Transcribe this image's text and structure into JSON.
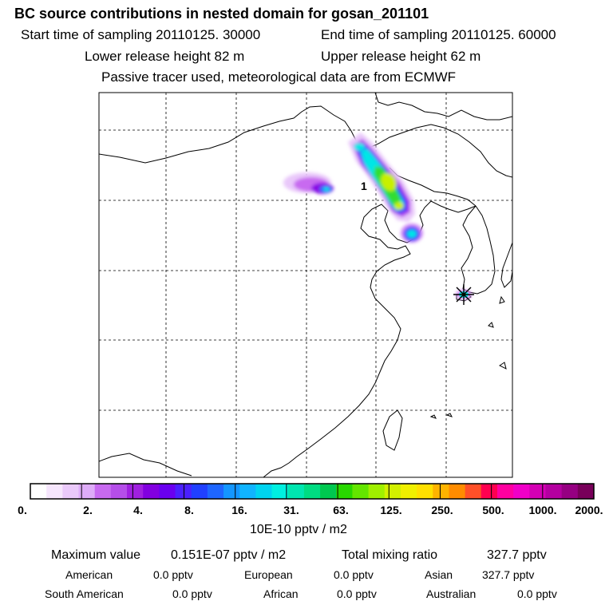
{
  "header": {
    "title": "BC  source contributions in nested domain for gosan_201101",
    "start_time": "Start time of sampling 20110125. 30000",
    "end_time": "End time of sampling 20110125. 60000",
    "lower_height": "Lower release height   82 m",
    "upper_height": "Upper release height   62 m",
    "tracer_note": "Passive tracer used, meteorological data are from ECMWF"
  },
  "map": {
    "release_label": "1",
    "plume_colors": {
      "outer": "#b000e8",
      "mid": "#1e66ff",
      "inner": "#00e6e6",
      "core": "#33dd33",
      "peak": "#c8f000"
    },
    "coastline_color": "#000000",
    "grid_style": "dashed"
  },
  "colorbar": {
    "colors": [
      "#ffffff",
      "#f6e6fd",
      "#eac9fa",
      "#deacf8",
      "#c86af0",
      "#b54ee9",
      "#a020e0",
      "#8200e0",
      "#6a00f0",
      "#4a20ff",
      "#2040ff",
      "#1e66ff",
      "#1496ff",
      "#10b4ff",
      "#00d4f0",
      "#00f0e0",
      "#00e6b0",
      "#00dc82",
      "#00c850",
      "#28d800",
      "#64e600",
      "#a0f000",
      "#d2f000",
      "#f0f000",
      "#ffe000",
      "#ffb400",
      "#ff8c00",
      "#ff5028",
      "#ff0050",
      "#ff00a0",
      "#f000c8",
      "#d400b4",
      "#b400a0",
      "#960082",
      "#78005a"
    ],
    "tick_labels": [
      "0.",
      "2.",
      "4.",
      "8.",
      "16.",
      "31.",
      "63.",
      "125.",
      "250.",
      "500.",
      "1000.",
      "2000."
    ],
    "units": "10E-10 pptv / m2"
  },
  "stats": {
    "max_label": "Maximum value",
    "max_value": "0.151E-07 pptv / m2",
    "total_label": "Total mixing ratio",
    "total_value": "327.7 pptv",
    "regions": [
      {
        "name": "American",
        "value": "0.0 pptv"
      },
      {
        "name": "European",
        "value": "0.0 pptv"
      },
      {
        "name": "Asian",
        "value": "327.7 pptv"
      },
      {
        "name": "South American",
        "value": "0.0 pptv"
      },
      {
        "name": "African",
        "value": "0.0 pptv"
      },
      {
        "name": "Australian",
        "value": "0.0 pptv"
      }
    ]
  }
}
